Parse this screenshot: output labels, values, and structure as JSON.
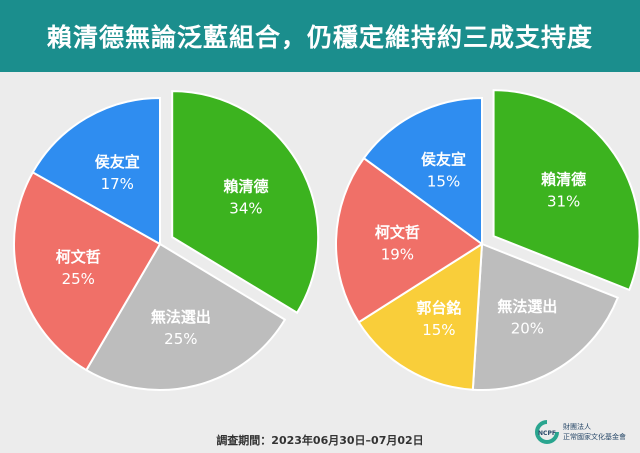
{
  "header": {
    "title": "賴清德無論泛藍組合，仍穩定維持約三成支持度"
  },
  "chart_data": [
    {
      "type": "pie",
      "slices": [
        {
          "label": "賴清德",
          "value": 34,
          "display": "34%",
          "color": "#3cb31f",
          "exploded": true
        },
        {
          "label": "無法選出",
          "value": 25,
          "display": "25%",
          "color": "#bdbdbd"
        },
        {
          "label": "柯文哲",
          "value": 25,
          "display": "25%",
          "color": "#f07068"
        },
        {
          "label": "侯友宜",
          "value": 17,
          "display": "17%",
          "color": "#2f8df0"
        }
      ]
    },
    {
      "type": "pie",
      "slices": [
        {
          "label": "賴清德",
          "value": 31,
          "display": "31%",
          "color": "#3cb31f",
          "exploded": true
        },
        {
          "label": "無法選出",
          "value": 20,
          "display": "20%",
          "color": "#bdbdbd"
        },
        {
          "label": "郭台銘",
          "value": 15,
          "display": "15%",
          "color": "#f9ce3a"
        },
        {
          "label": "柯文哲",
          "value": 19,
          "display": "19%",
          "color": "#f07068"
        },
        {
          "label": "侯友宜",
          "value": 15,
          "display": "15%",
          "color": "#2f8df0"
        }
      ]
    }
  ],
  "footer": {
    "survey_period": "調查期間：2023年06月30日–07月02日"
  },
  "logo": {
    "mark_text": "NCPF",
    "org_line1": "財團法人",
    "org_line2": "正常國家文化基金會"
  }
}
